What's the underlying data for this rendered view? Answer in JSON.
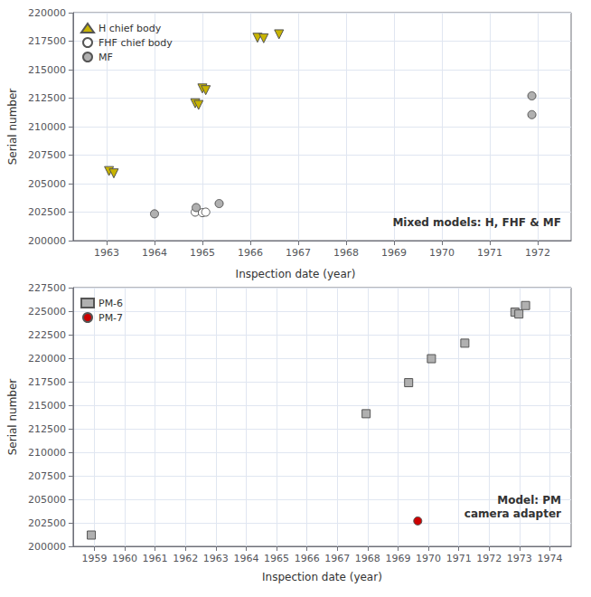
{
  "chart_data": [
    {
      "type": "scatter",
      "ylabel": "Serial number",
      "annotation": "Mixed models: H, FHF & MF",
      "xlim": [
        1962.3,
        1972.7
      ],
      "ylim": [
        200000,
        220000
      ],
      "xticks": [
        1963,
        1964,
        1965,
        1966,
        1967,
        1968,
        1969,
        1970,
        1971,
        1972
      ],
      "yticks": [
        200000,
        202500,
        205000,
        207500,
        210000,
        212500,
        215000,
        217500,
        220000
      ],
      "grid": true,
      "legend": "upper left",
      "series": [
        {
          "name": "H chief body",
          "color": "#c8b400",
          "marker": "triangle_down",
          "x": [
            1963.05,
            1963.15,
            1964.85,
            1964.92,
            1965.0,
            1965.07,
            1966.15,
            1966.28,
            1966.6
          ],
          "values": [
            206100,
            205900,
            212050,
            211900,
            213350,
            213200,
            217800,
            217750,
            218100
          ]
        },
        {
          "name": "FHF chief body",
          "color": "#ffffff",
          "marker": "circle",
          "x": [
            1964.85,
            1965.0,
            1965.07
          ],
          "values": [
            202500,
            202450,
            202500
          ]
        },
        {
          "name": "MF",
          "color": "#b0b0b0",
          "marker": "circle",
          "x": [
            1964.0,
            1964.87,
            1965.35,
            1971.88,
            1971.88
          ],
          "values": [
            202350,
            202900,
            203250,
            212700,
            211050
          ]
        }
      ]
    },
    {
      "type": "scatter",
      "title": "Inspection date (year)",
      "xlabel": "Inspection date (year)",
      "ylabel": "Serial number",
      "annotation": "Model: PM\ncamera adapter",
      "xlim": [
        1958.3,
        1974.7
      ],
      "ylim": [
        200000,
        227500
      ],
      "xticks": [
        1959,
        1960,
        1961,
        1962,
        1963,
        1964,
        1965,
        1966,
        1967,
        1968,
        1969,
        1970,
        1971,
        1972,
        1973,
        1974
      ],
      "yticks": [
        200000,
        202500,
        205000,
        207500,
        210000,
        212500,
        215000,
        217500,
        220000,
        222500,
        225000,
        227500
      ],
      "grid": true,
      "legend": "upper left",
      "series": [
        {
          "name": "PM-6",
          "color": "#b0b0b0",
          "marker": "square",
          "x": [
            1958.9,
            1967.95,
            1969.35,
            1970.1,
            1971.2,
            1972.85,
            1972.98,
            1973.2
          ],
          "values": [
            201200,
            214100,
            217400,
            219950,
            221600,
            224900,
            224700,
            225600
          ]
        },
        {
          "name": "PM-7",
          "color": "#cc0000",
          "marker": "circle",
          "x": [
            1969.65
          ],
          "values": [
            202700
          ]
        }
      ]
    }
  ]
}
